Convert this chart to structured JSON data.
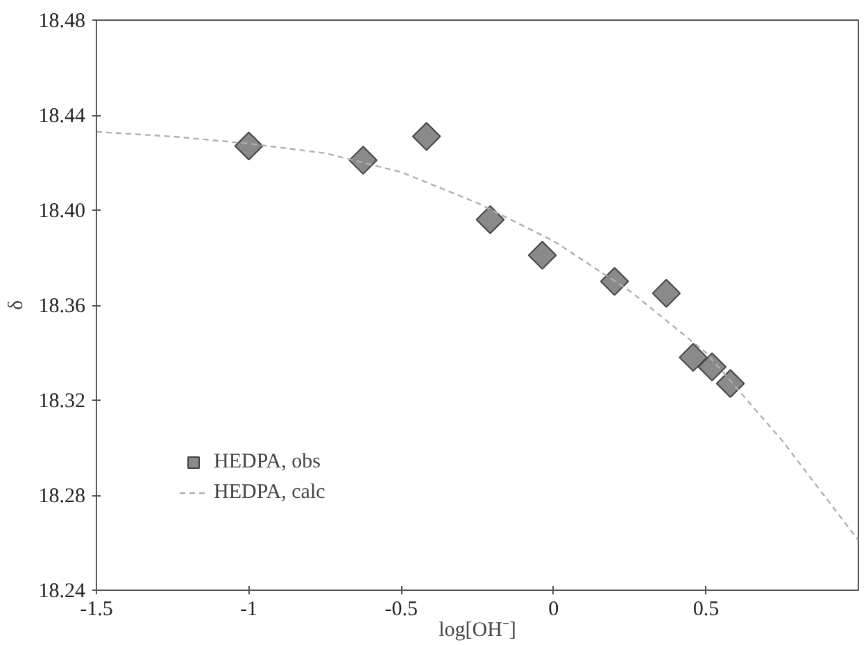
{
  "chart_data": {
    "type": "scatter",
    "xlabel": "log[OH⁻]",
    "ylabel": "δ",
    "xlim": [
      -1.5,
      1
    ],
    "xticks": [
      -1.5,
      -1,
      -0.5,
      0,
      0.5
    ],
    "ylim": [
      18.24,
      18.48
    ],
    "yticks": [
      {
        "value": 18.24,
        "label": "18.24"
      },
      {
        "value": 18.28,
        "label": "18.28"
      },
      {
        "value": 18.32,
        "label": "18.32"
      },
      {
        "value": 18.36,
        "label": "18.36"
      },
      {
        "value": 18.4,
        "label": "18.40"
      },
      {
        "value": 18.44,
        "label": "18.44"
      },
      {
        "value": 18.48,
        "label": "18.48"
      }
    ],
    "grid": false,
    "legend": "bottom left",
    "series": [
      {
        "name": "HEDPA, obs",
        "marker": "diamond",
        "color": "#8a8a8a",
        "x": [
          -1.0,
          -0.625,
          -0.417,
          -0.208,
          -0.037,
          0.2,
          0.37,
          0.458,
          0.52,
          0.58
        ],
        "values": [
          18.427,
          18.421,
          18.431,
          18.396,
          18.381,
          18.37,
          18.365,
          18.338,
          18.334,
          18.327
        ]
      },
      {
        "name": "HEDPA, calc",
        "type": "line",
        "color": "#b0b0b0",
        "line_style": "dashed",
        "x": [
          -1.5,
          -1.25,
          -1,
          -0.75,
          -0.5,
          -0.25,
          0,
          0.25,
          0.5,
          0.75,
          1
        ],
        "values": [
          18.433,
          18.431,
          18.428,
          18.424,
          18.416,
          18.403,
          18.387,
          18.366,
          18.34,
          18.303,
          18.261
        ]
      }
    ]
  }
}
